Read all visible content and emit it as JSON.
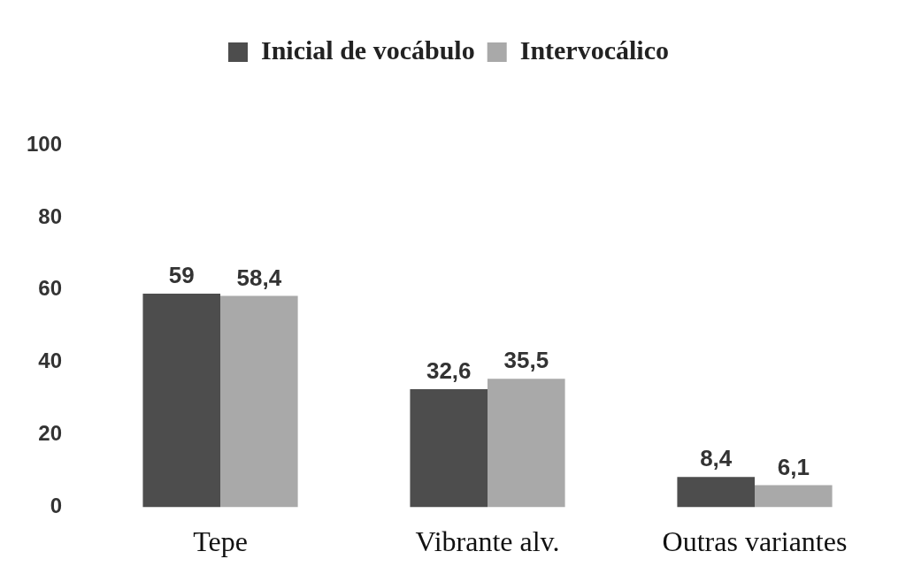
{
  "chart_data": {
    "type": "bar",
    "categories": [
      "Tepe",
      "Vibrante alv.",
      "Outras variantes"
    ],
    "series": [
      {
        "name": "Inicial de vocábulo",
        "color": "#4d4d4d",
        "values": [
          59,
          32.6,
          8.4
        ],
        "value_labels": [
          "59",
          "32,6",
          "8,4"
        ]
      },
      {
        "name": "Intervocálico",
        "color": "#a9a9a9",
        "values": [
          58.4,
          35.5,
          6.1
        ],
        "value_labels": [
          "58,4",
          "35,5",
          "6,1"
        ]
      }
    ],
    "ylim": [
      0,
      100
    ],
    "yticks": [
      0,
      20,
      40,
      60,
      80,
      100
    ],
    "grid": false,
    "legend": "top",
    "data_labels": true
  }
}
